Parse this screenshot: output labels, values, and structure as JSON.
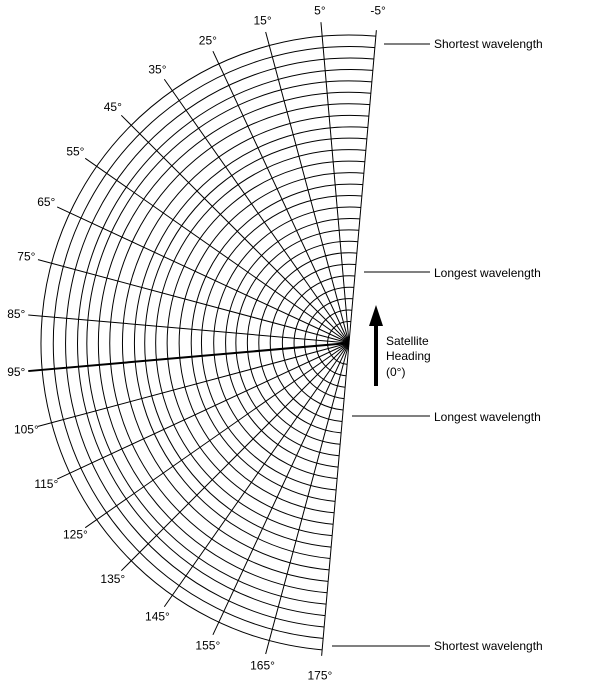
{
  "diagram": {
    "angle_labels": [
      "-5°",
      "5°",
      "15°",
      "25°",
      "35°",
      "45°",
      "55°",
      "65°",
      "75°",
      "85°",
      "95°",
      "105°",
      "115°",
      "125°",
      "135°",
      "145°",
      "155°",
      "165°",
      "175°"
    ],
    "heading": {
      "line1": "Satellite",
      "line2": "Heading",
      "line3": "(0°)"
    },
    "callouts": {
      "top_shortest": "Shortest wavelength",
      "upper_longest": "Longest wavelength",
      "lower_longest": "Longest wavelength",
      "bottom_shortest": "Shortest wavelength"
    },
    "colors": {
      "line": "#000000",
      "background": "#ffffff"
    }
  }
}
